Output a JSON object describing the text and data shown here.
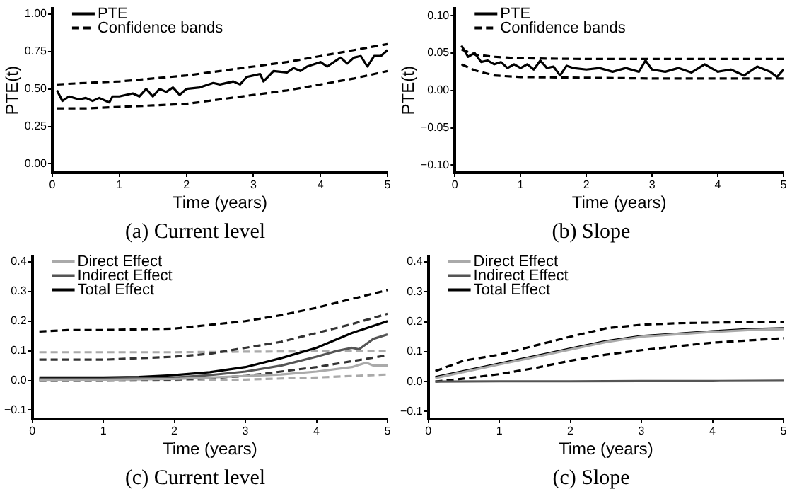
{
  "chart_data": [
    {
      "type": "line",
      "title": "(a) Current level",
      "xlabel": "Time (years)",
      "ylabel": "PTE(t)",
      "xlim": [
        0,
        5
      ],
      "xticks": [
        0,
        1,
        2,
        3,
        4,
        5
      ],
      "ylim": [
        -0.06,
        1.04
      ],
      "yticks": [
        {
          "value": 0,
          "label": "0.00"
        },
        {
          "value": 0.25,
          "label": "0.25"
        },
        {
          "value": 0.5,
          "label": "0.50"
        },
        {
          "value": 0.75,
          "label": "0.75"
        },
        {
          "value": 1,
          "label": "1.00"
        }
      ],
      "grid": false,
      "legend": "top left",
      "marker": "none",
      "series": [
        {
          "name": "PTE",
          "color": "#000000",
          "line_style": "solid",
          "x": [
            0.07,
            0.15,
            0.25,
            0.4,
            0.5,
            0.6,
            0.7,
            0.85,
            0.9,
            1.0,
            1.2,
            1.3,
            1.4,
            1.5,
            1.6,
            1.7,
            1.8,
            1.9,
            2.0,
            2.2,
            2.4,
            2.5,
            2.7,
            2.8,
            2.9,
            3.0,
            3.1,
            3.15,
            3.3,
            3.5,
            3.6,
            3.7,
            3.8,
            4.0,
            4.1,
            4.3,
            4.4,
            4.5,
            4.6,
            4.7,
            4.8,
            4.9,
            5.0
          ],
          "values": [
            0.49,
            0.42,
            0.45,
            0.43,
            0.44,
            0.42,
            0.44,
            0.41,
            0.45,
            0.45,
            0.47,
            0.45,
            0.5,
            0.45,
            0.5,
            0.48,
            0.51,
            0.46,
            0.5,
            0.51,
            0.54,
            0.53,
            0.55,
            0.53,
            0.58,
            0.59,
            0.6,
            0.55,
            0.62,
            0.61,
            0.64,
            0.62,
            0.65,
            0.68,
            0.65,
            0.71,
            0.67,
            0.71,
            0.72,
            0.65,
            0.72,
            0.72,
            0.76
          ]
        },
        {
          "name": "Confidence bands",
          "color": "#000000",
          "line_style": "dashed",
          "x": [
            0.07,
            0.5,
            1,
            1.5,
            2,
            2.5,
            3,
            3.5,
            4,
            4.5,
            5
          ],
          "values": [
            0.53,
            0.54,
            0.55,
            0.57,
            0.59,
            0.62,
            0.65,
            0.68,
            0.72,
            0.76,
            0.8
          ]
        },
        {
          "color": "#000000",
          "line_style": "dashed",
          "x": [
            0.07,
            0.5,
            1,
            1.5,
            2,
            2.5,
            3,
            3.5,
            4,
            4.5,
            5
          ],
          "values": [
            0.37,
            0.37,
            0.38,
            0.39,
            0.4,
            0.43,
            0.46,
            0.49,
            0.53,
            0.57,
            0.62
          ]
        }
      ]
    },
    {
      "type": "line",
      "title": "(b) Slope",
      "xlabel": "Time (years)",
      "ylabel": "PTE(t)",
      "xlim": [
        0,
        5
      ],
      "xticks": [
        0,
        1,
        2,
        3,
        4,
        5
      ],
      "ylim": [
        -0.11,
        0.11
      ],
      "yticks": [
        {
          "value": -0.1,
          "label": "−0.10"
        },
        {
          "value": -0.05,
          "label": "−0.05"
        },
        {
          "value": 0,
          "label": "0.00"
        },
        {
          "value": 0.05,
          "label": "0.05"
        },
        {
          "value": 0.1,
          "label": "0.10"
        }
      ],
      "grid": false,
      "legend": "top left",
      "marker": "none",
      "series": [
        {
          "name": "PTE",
          "color": "#000000",
          "line_style": "solid",
          "x": [
            0.1,
            0.2,
            0.3,
            0.4,
            0.5,
            0.6,
            0.7,
            0.8,
            0.9,
            1.0,
            1.1,
            1.2,
            1.3,
            1.4,
            1.5,
            1.6,
            1.7,
            1.8,
            2.0,
            2.2,
            2.4,
            2.6,
            2.8,
            2.9,
            3.0,
            3.2,
            3.4,
            3.6,
            3.8,
            4.0,
            4.2,
            4.4,
            4.6,
            4.8,
            4.9,
            5.0
          ],
          "values": [
            0.06,
            0.045,
            0.05,
            0.038,
            0.04,
            0.035,
            0.038,
            0.03,
            0.035,
            0.03,
            0.035,
            0.028,
            0.04,
            0.03,
            0.032,
            0.02,
            0.033,
            0.03,
            0.028,
            0.03,
            0.025,
            0.03,
            0.025,
            0.04,
            0.028,
            0.025,
            0.03,
            0.024,
            0.035,
            0.025,
            0.028,
            0.02,
            0.032,
            0.025,
            0.018,
            0.028
          ]
        },
        {
          "name": "Confidence bands",
          "color": "#000000",
          "line_style": "dashed",
          "x": [
            0.1,
            0.3,
            0.6,
            1,
            2,
            3,
            5
          ],
          "values": [
            0.055,
            0.048,
            0.045,
            0.043,
            0.042,
            0.042,
            0.042
          ]
        },
        {
          "color": "#000000",
          "line_style": "dashed",
          "x": [
            0.1,
            0.3,
            0.6,
            1,
            2,
            3,
            5
          ],
          "values": [
            0.035,
            0.027,
            0.02,
            0.018,
            0.017,
            0.016,
            0.016
          ]
        }
      ]
    },
    {
      "type": "line",
      "title": "(c) Current level",
      "xlabel": "Time (years)",
      "xlim": [
        0,
        5
      ],
      "xticks": [
        0,
        1,
        2,
        3,
        4,
        5
      ],
      "ylim": [
        -0.13,
        0.42
      ],
      "yticks": [
        {
          "value": -0.1,
          "label": "−0.1"
        },
        {
          "value": 0,
          "label": "0.0"
        },
        {
          "value": 0.1,
          "label": "0.1"
        },
        {
          "value": 0.2,
          "label": "0.2"
        },
        {
          "value": 0.3,
          "label": "0.3"
        },
        {
          "value": 0.4,
          "label": "0.4"
        }
      ],
      "grid": false,
      "legend": "top left",
      "marker": "none",
      "series": [
        {
          "name": "Direct Effect",
          "color": "#aaaaaa",
          "line_style": "solid",
          "x": [
            0.1,
            1,
            2,
            3,
            3.5,
            4,
            4.5,
            4.7,
            4.8,
            5
          ],
          "values": [
            0,
            0.002,
            0.005,
            0.015,
            0.02,
            0.03,
            0.045,
            0.06,
            0.05,
            0.05
          ]
        },
        {
          "name": "Indirect Effect",
          "color": "#555555",
          "line_style": "solid",
          "x": [
            0.1,
            1,
            2,
            2.5,
            3,
            3.5,
            4,
            4.3,
            4.5,
            4.6,
            4.8,
            5
          ],
          "values": [
            0.005,
            0.005,
            0.01,
            0.018,
            0.03,
            0.05,
            0.08,
            0.1,
            0.11,
            0.105,
            0.14,
            0.155
          ]
        },
        {
          "name": "Total Effect",
          "color": "#000000",
          "line_style": "solid",
          "x": [
            0.1,
            1,
            1.5,
            2,
            2.5,
            3,
            3.5,
            4,
            4.5,
            5
          ],
          "values": [
            0.01,
            0.01,
            0.012,
            0.018,
            0.028,
            0.045,
            0.075,
            0.11,
            0.16,
            0.2
          ]
        },
        {
          "color": "#000000",
          "line_style": "dashed",
          "x": [
            0.1,
            0.5,
            1,
            2,
            3,
            3.5,
            4,
            4.5,
            5
          ],
          "values": [
            0.165,
            0.17,
            0.17,
            0.175,
            0.2,
            0.22,
            0.245,
            0.275,
            0.305
          ]
        },
        {
          "color": "#333333",
          "line_style": "dashed",
          "x": [
            0.1,
            1,
            2,
            2.5,
            3,
            3.5,
            4,
            4.5,
            5
          ],
          "values": [
            0.07,
            0.07,
            0.08,
            0.09,
            0.11,
            0.13,
            0.16,
            0.19,
            0.225
          ]
        },
        {
          "color": "#333333",
          "line_style": "dashed",
          "x": [
            0.1,
            1,
            2,
            2.5,
            3,
            3.5,
            4,
            4.5,
            5
          ],
          "values": [
            0,
            0,
            0.003,
            0.008,
            0.015,
            0.03,
            0.045,
            0.065,
            0.085
          ]
        },
        {
          "color": "#aaaaaa",
          "line_style": "dashed",
          "x": [
            0.1,
            1,
            2,
            3,
            4,
            5
          ],
          "values": [
            0.095,
            0.095,
            0.095,
            0.097,
            0.098,
            0.1
          ]
        },
        {
          "color": "#aaaaaa",
          "line_style": "dashed",
          "x": [
            0.1,
            1,
            2,
            3,
            4,
            5
          ],
          "values": [
            -0.002,
            -0.002,
            0,
            0.003,
            0.01,
            0.02
          ]
        }
      ]
    },
    {
      "type": "line",
      "title": "(c) Slope",
      "xlabel": "Time (years)",
      "xlim": [
        0,
        5
      ],
      "xticks": [
        0,
        1,
        2,
        3,
        4,
        5
      ],
      "ylim": [
        -0.125,
        0.42
      ],
      "yticks": [
        {
          "value": -0.1,
          "label": "−0.1"
        },
        {
          "value": 0,
          "label": "0.0"
        },
        {
          "value": 0.1,
          "label": "0.1"
        },
        {
          "value": 0.2,
          "label": "0.2"
        },
        {
          "value": 0.3,
          "label": "0.3"
        },
        {
          "value": 0.4,
          "label": "0.4"
        }
      ],
      "grid": false,
      "legend": "top left",
      "marker": "none",
      "series": [
        {
          "name": "Direct Effect",
          "color": "#aaaaaa",
          "line_style": "solid",
          "x": [
            0.1,
            0.5,
            1,
            1.5,
            2,
            2.5,
            3,
            3.5,
            4,
            4.5,
            5
          ],
          "values": [
            0.012,
            0.032,
            0.057,
            0.082,
            0.107,
            0.132,
            0.15,
            0.158,
            0.166,
            0.172,
            0.175
          ]
        },
        {
          "name": "Indirect Effect",
          "color": "#555555",
          "line_style": "solid",
          "x": [
            0.1,
            1,
            2,
            3,
            4,
            5
          ],
          "values": [
            0,
            0.001,
            0.001,
            0.002,
            0.002,
            0.003
          ]
        },
        {
          "name": "Total Effect",
          "color": "#000000",
          "line_style": "solid",
          "x": [
            0.1,
            0.5,
            1,
            1.5,
            2,
            2.5,
            3,
            3.5,
            4,
            4.5,
            5
          ],
          "values": [
            0.015,
            0.035,
            0.06,
            0.085,
            0.11,
            0.135,
            0.152,
            0.16,
            0.168,
            0.175,
            0.178
          ]
        },
        {
          "color": "#000000",
          "line_style": "dashed",
          "x": [
            0.1,
            0.5,
            1,
            1.5,
            2,
            2.5,
            3,
            3.5,
            4,
            5
          ],
          "values": [
            0.035,
            0.07,
            0.09,
            0.12,
            0.15,
            0.178,
            0.19,
            0.195,
            0.197,
            0.2
          ]
        },
        {
          "color": "#000000",
          "line_style": "dashed",
          "x": [
            0.1,
            0.5,
            1,
            1.5,
            2,
            2.5,
            3,
            3.5,
            4,
            5
          ],
          "values": [
            0,
            0.01,
            0.025,
            0.045,
            0.07,
            0.09,
            0.105,
            0.118,
            0.13,
            0.145
          ]
        }
      ]
    }
  ]
}
